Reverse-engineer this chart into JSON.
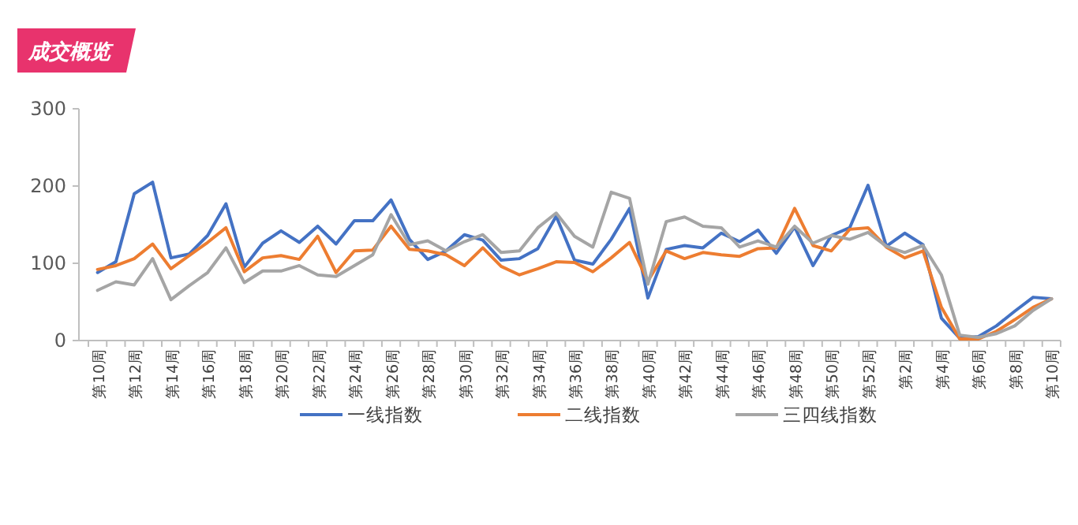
{
  "chart_data": {
    "type": "line",
    "title": "成交概览",
    "categories": [
      "第10周",
      null,
      "第12周",
      null,
      "第14周",
      null,
      "第16周",
      null,
      "第18周",
      null,
      "第20周",
      null,
      "第22周",
      null,
      "第24周",
      null,
      "第26周",
      null,
      "第28周",
      null,
      "第30周",
      null,
      "第32周",
      null,
      "第34周",
      null,
      "第36周",
      null,
      "第38周",
      null,
      "第40周",
      null,
      "第42周",
      null,
      "第44周",
      null,
      "第46周",
      null,
      "第48周",
      null,
      "第50周",
      null,
      "第52周",
      null,
      "第2周",
      null,
      "第4周",
      null,
      "第6周",
      null,
      "第8周",
      null,
      "第10周"
    ],
    "series": [
      {
        "name": "一线指数",
        "color": "#4472c4",
        "values": [
          88,
          102,
          190,
          205,
          107,
          112,
          136,
          177,
          95,
          126,
          142,
          127,
          148,
          125,
          155,
          155,
          182,
          131,
          105,
          116,
          137,
          130,
          104,
          106,
          119,
          161,
          104,
          99,
          131,
          171,
          55,
          118,
          123,
          120,
          139,
          128,
          143,
          113,
          147,
          97,
          136,
          146,
          201,
          122,
          139,
          124,
          29,
          3,
          5,
          19,
          38,
          56,
          54
        ]
      },
      {
        "name": "二线指数",
        "color": "#ed7d31",
        "values": [
          92,
          97,
          106,
          125,
          93,
          110,
          127,
          146,
          89,
          107,
          110,
          105,
          135,
          88,
          116,
          117,
          148,
          118,
          116,
          111,
          97,
          120,
          96,
          85,
          93,
          102,
          101,
          89,
          107,
          127,
          77,
          116,
          106,
          114,
          111,
          109,
          119,
          120,
          171,
          123,
          116,
          144,
          146,
          121,
          107,
          116,
          43,
          2,
          2,
          12,
          27,
          43,
          54
        ]
      },
      {
        "name": "三四线指数",
        "color": "#a5a5a5",
        "values": [
          65,
          76,
          72,
          106,
          53,
          71,
          88,
          120,
          75,
          90,
          90,
          97,
          85,
          83,
          97,
          111,
          163,
          124,
          129,
          116,
          128,
          137,
          114,
          116,
          146,
          165,
          135,
          121,
          192,
          184,
          73,
          154,
          160,
          148,
          146,
          121,
          129,
          121,
          148,
          126,
          136,
          131,
          140,
          122,
          114,
          123,
          85,
          7,
          4,
          9,
          19,
          39,
          54
        ]
      }
    ],
    "ylim": [
      0,
      300
    ],
    "yticks": [
      0,
      100,
      200,
      300
    ],
    "legend": "bottom"
  }
}
